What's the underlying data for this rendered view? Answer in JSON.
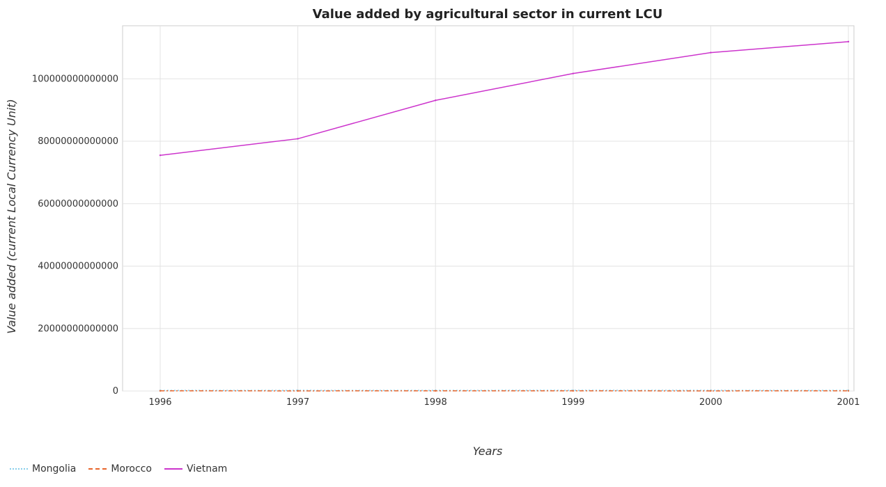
{
  "chart_data": {
    "type": "line",
    "title": "Value added by agricultural sector in current LCU",
    "xlabel": "Years",
    "ylabel": "Value added (current Local Currency Unit)",
    "categories": [
      "1996",
      "1997",
      "1998",
      "1999",
      "2000",
      "2001"
    ],
    "ylim": [
      0,
      117000000000000
    ],
    "yticks": [
      0,
      20000000000000,
      40000000000000,
      60000000000000,
      80000000000000,
      100000000000000
    ],
    "ytick_labels": [
      "0",
      "20000000000000",
      "40000000000000",
      "60000000000000",
      "80000000000000",
      "100000000000000"
    ],
    "grid": true,
    "legend_position": "bottom-left",
    "series": [
      {
        "name": "Mongolia",
        "color": "#87ceeb",
        "dash": "dotted",
        "values": [
          180000000000,
          210000000000,
          200000000000,
          220000000000,
          210000000000,
          200000000000
        ]
      },
      {
        "name": "Morocco",
        "color": "#e8642a",
        "dash": "dashdot",
        "values": [
          48000000000,
          40000000000,
          47000000000,
          43000000000,
          41000000000,
          45000000000
        ]
      },
      {
        "name": "Vietnam",
        "color": "#cc33cc",
        "dash": "solid",
        "values": [
          75500000000000,
          80800000000000,
          93100000000000,
          101700000000000,
          108400000000000,
          111900000000000
        ]
      }
    ]
  }
}
